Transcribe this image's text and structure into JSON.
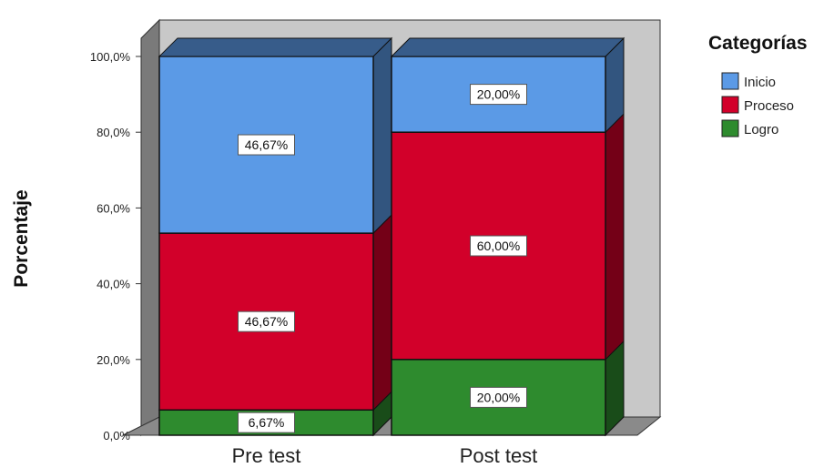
{
  "chart_data": {
    "type": "bar",
    "stacked": true,
    "three_d": true,
    "categories": [
      "Pre test",
      "Post test"
    ],
    "series": [
      {
        "name": "Logro",
        "values": [
          6.67,
          20.0
        ],
        "labels": [
          "6,67%",
          "20,00%"
        ],
        "color": "#2e8b2e"
      },
      {
        "name": "Proceso",
        "values": [
          46.67,
          60.0
        ],
        "labels": [
          "46,67%",
          "60,00%"
        ],
        "color": "#d2002a"
      },
      {
        "name": "Inicio",
        "values": [
          46.67,
          20.0
        ],
        "labels": [
          "46,67%",
          "20,00%"
        ],
        "color": "#5b9ae6"
      }
    ],
    "ylabel": "Porcentaje",
    "xlabel": "",
    "ylim": [
      0,
      100
    ],
    "yticks": [
      0,
      20,
      40,
      60,
      80,
      100
    ],
    "ytick_labels": [
      "0,0%",
      "20,0%",
      "40,0%",
      "60,0%",
      "80,0%",
      "100,0%"
    ],
    "legend": {
      "title": "Categorías",
      "position": "top-right",
      "items": [
        {
          "name": "Inicio",
          "color": "#5b9ae6"
        },
        {
          "name": "Proceso",
          "color": "#d2002a"
        },
        {
          "name": "Logro",
          "color": "#2e8b2e"
        }
      ]
    },
    "grid": false,
    "background_color": "#c8c8c8"
  }
}
